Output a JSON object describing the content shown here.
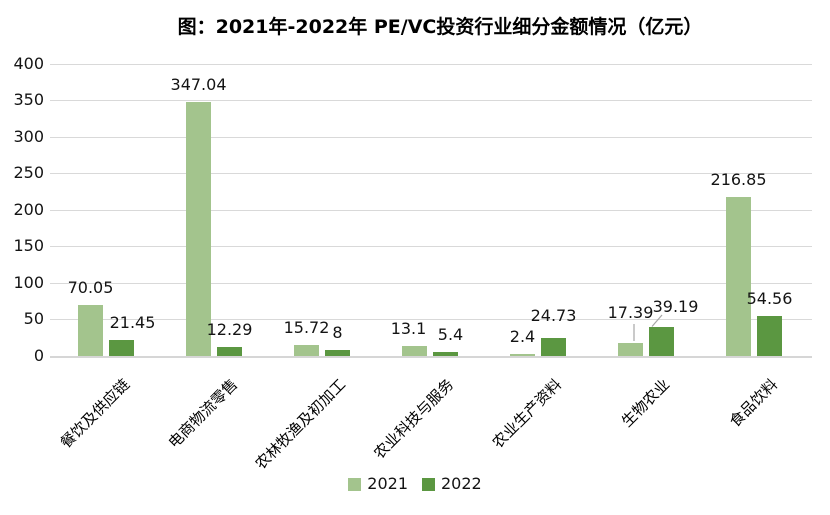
{
  "title": "图：2021年-2022年 PE/VC投资行业细分金额情况（亿元）",
  "colors": {
    "series_2021": "#a3c48d",
    "series_2022": "#5b9741",
    "gridline": "#d9d9d9",
    "leader_line": "#a6a6a6",
    "text": "#141414"
  },
  "chart_data": {
    "type": "bar",
    "title": "图：2021年-2022年 PE/VC投资行业细分金额情况（亿元）",
    "categories": [
      "餐饮及供应链",
      "电商物流零售",
      "农林牧渔及初加工",
      "农业科技与服务",
      "农业生产资料",
      "生物农业",
      "食品饮料"
    ],
    "series": [
      {
        "name": "2021",
        "color": "#a3c48d",
        "values": [
          70.05,
          347.04,
          15.72,
          13.1,
          2.4,
          17.39,
          216.85
        ]
      },
      {
        "name": "2022",
        "color": "#5b9741",
        "values": [
          21.45,
          12.29,
          8,
          5.4,
          24.73,
          39.19,
          54.56
        ]
      }
    ],
    "xlabel": "",
    "ylabel": "",
    "ylim": [
      0,
      400
    ],
    "y_ticks": [
      0,
      50,
      100,
      150,
      200,
      250,
      300,
      350,
      400
    ],
    "grid": true,
    "data_labels": true,
    "legend_position": "bottom",
    "category_label_rotation_deg": 45
  },
  "legend": {
    "items": [
      {
        "label": "2021",
        "color": "#a3c48d"
      },
      {
        "label": "2022",
        "color": "#5b9741"
      }
    ]
  }
}
